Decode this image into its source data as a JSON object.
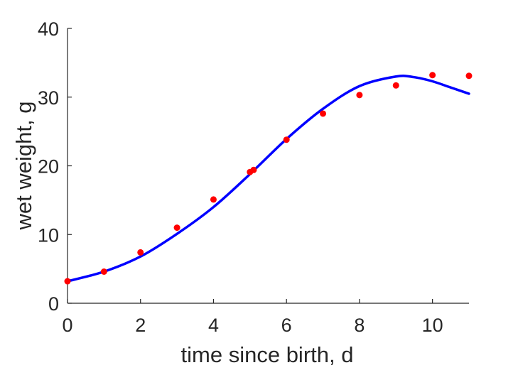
{
  "chart_data": {
    "type": "scatter",
    "title": "",
    "xlabel": "time since birth, d",
    "ylabel": "wet weight, g",
    "xlim": [
      0,
      11
    ],
    "ylim": [
      0,
      40
    ],
    "xticks": [
      0,
      2,
      4,
      6,
      8,
      10
    ],
    "yticks": [
      0,
      10,
      20,
      30,
      40
    ],
    "grid": false,
    "legend": "none",
    "series": [
      {
        "kind": "scatter",
        "color": "#ff0000",
        "x": [
          0,
          1,
          2,
          3,
          4,
          5,
          5.1,
          6,
          7,
          8,
          9,
          10,
          11
        ],
        "y": [
          3.2,
          4.6,
          7.4,
          11.0,
          15.1,
          19.1,
          19.4,
          23.8,
          27.6,
          30.3,
          31.7,
          33.2,
          33.1
        ]
      },
      {
        "kind": "line",
        "color": "#0000ff",
        "x": [
          0,
          1,
          2,
          3,
          4,
          5,
          6,
          7,
          8,
          9,
          9.5,
          10,
          10.5,
          11
        ],
        "y": [
          3.2,
          4.6,
          6.8,
          10.1,
          14.0,
          18.8,
          23.9,
          28.3,
          31.6,
          33.0,
          32.9,
          32.3,
          31.4,
          30.5
        ]
      }
    ]
  }
}
